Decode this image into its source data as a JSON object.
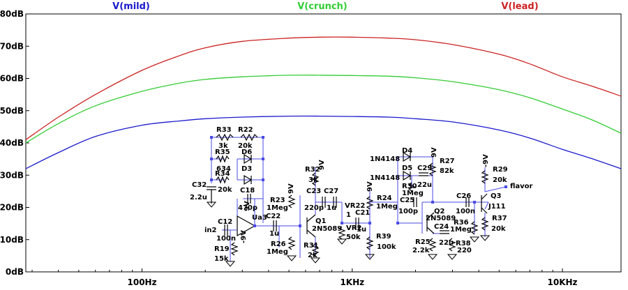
{
  "chart_data": {
    "type": "line",
    "title": "",
    "xlabel": "",
    "ylabel": "",
    "x_scale": "log",
    "xlim": [
      28,
      19000
    ],
    "ylim": [
      0,
      80
    ],
    "grid": false,
    "legend_placement": "top",
    "x_ticks": [
      {
        "value": 100,
        "label": "100Hz"
      },
      {
        "value": 1000,
        "label": "1KHz"
      },
      {
        "value": 10000,
        "label": "10KHz"
      }
    ],
    "y_ticks": [
      {
        "value": 0,
        "label": "0dB"
      },
      {
        "value": 10,
        "label": "10dB"
      },
      {
        "value": 20,
        "label": "20dB"
      },
      {
        "value": 30,
        "label": "30dB"
      },
      {
        "value": 40,
        "label": "40dB"
      },
      {
        "value": 50,
        "label": "50dB"
      },
      {
        "value": 60,
        "label": "60dB"
      },
      {
        "value": 70,
        "label": "70dB"
      },
      {
        "value": 80,
        "label": "80dB"
      }
    ],
    "series": [
      {
        "name": "V(mild)",
        "color": "#1a1acc",
        "x": [
          28,
          40,
          60,
          100,
          150,
          200,
          300,
          500,
          700,
          1000,
          1500,
          2000,
          3000,
          5000,
          7000,
          10000,
          14000,
          19000
        ],
        "y": [
          32,
          37,
          42,
          45.5,
          46.8,
          47.5,
          48,
          48.3,
          48.3,
          48.2,
          48,
          47.5,
          46.5,
          44,
          41.5,
          38,
          35,
          32
        ]
      },
      {
        "name": "V(crunch)",
        "color": "#33cc33",
        "x": [
          28,
          40,
          60,
          100,
          150,
          200,
          300,
          500,
          700,
          1000,
          1500,
          2000,
          3000,
          5000,
          7000,
          10000,
          14000,
          19000
        ],
        "y": [
          40,
          46,
          51.5,
          56,
          58.5,
          59.7,
          60.5,
          61,
          61,
          60.9,
          60.7,
          60.2,
          59,
          56.5,
          54,
          50.5,
          47,
          43
        ]
      },
      {
        "name": "V(lead)",
        "color": "#cc2222",
        "x": [
          28,
          40,
          60,
          100,
          150,
          200,
          300,
          500,
          700,
          1000,
          1500,
          2000,
          3000,
          5000,
          7000,
          10000,
          14000,
          19000
        ],
        "y": [
          41,
          48,
          55,
          62.5,
          67,
          69.5,
          71.5,
          72.5,
          72.8,
          72.8,
          72.5,
          72,
          70.5,
          67.5,
          64.5,
          60.5,
          57.5,
          54.5
        ]
      }
    ]
  },
  "schematic": {
    "labels": {
      "R33": "R33",
      "R33v": "3k",
      "R22": "R22",
      "R22v": "20k",
      "R35": "R35",
      "R35v": "634",
      "D6": "D6",
      "R34": "R34",
      "R34v": "20k",
      "D3": "D3",
      "C32": "C32",
      "C32v": "2.2u",
      "C18": "C18",
      "C18v": "470p",
      "U3": "Ua3",
      "C12": "C12",
      "C12v": "100n",
      "in2": "in2",
      "R19": "R19",
      "R19v": "15k",
      "C22": "C22",
      "C22v": "1u",
      "R23": "R23",
      "R23v": "1Meg",
      "R26": "R26",
      "R26v": "1Meg",
      "R32": "R32",
      "R32v": "3k",
      "C23": "C23",
      "C23v": "220p",
      "C27": "C27",
      "C27v": "1u",
      "Q1": "Q1",
      "Q1v": "2N5089",
      "R31": "R31",
      "R31v": "2k",
      "VR22": "VR22",
      "VR22n": "1",
      "VR2": "VR2",
      "VR2v": "50k",
      "C21": "C21",
      "C21v": "1u",
      "R24": "R24",
      "R24v": "1Meg",
      "R39": "R39",
      "R39v": "100k",
      "D4": "D4",
      "D4v": "1N4148",
      "D5": "D5",
      "D5v": "1N4148",
      "R30": "R30",
      "R30v": "1Meg",
      "C29": "C29",
      "C29v": "22u",
      "R27": "R27",
      "R27v": "82k",
      "C25": "C25",
      "C25v": "100p",
      "Q2": "Q2",
      "Q2v": "2N5089",
      "C24": "C24",
      "C24v": "22u",
      "R25": "R25",
      "R25v": "2.2k",
      "R36": "R36",
      "R36v": "1Meg",
      "R38": "R38",
      "R38v": "220",
      "C26": "C26",
      "C26v": "100n",
      "R29": "R29",
      "R29v": "20k",
      "flavor": "flavor",
      "Q3": "Q3",
      "Q3v": "J111",
      "R37": "R37",
      "R37v": "20k",
      "rail": "9V",
      "nrail": "-9V"
    }
  }
}
